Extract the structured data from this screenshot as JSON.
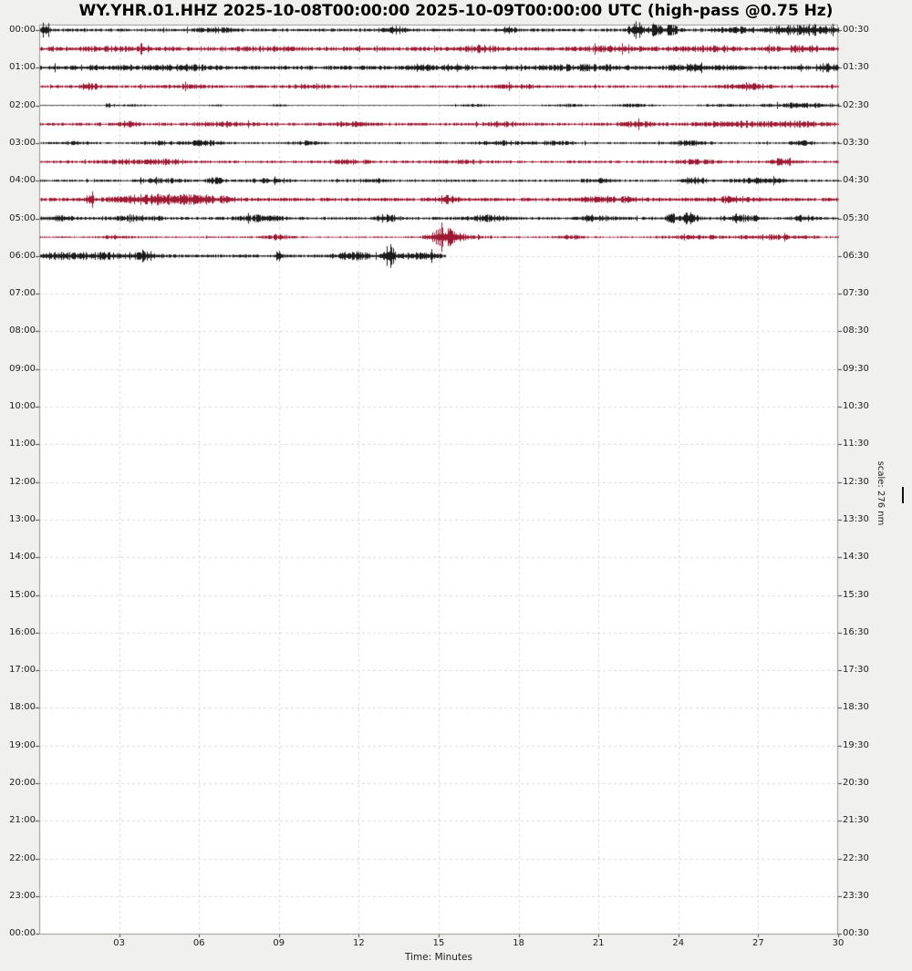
{
  "title": "WY.YHR.01.HHZ 2025-10-08T00:00:00 2025-10-09T00:00:00 UTC (high-pass @0.75 Hz)",
  "colors": {
    "background": "#f0f0ee",
    "plot_background": "#ffffff",
    "frame": "#979797",
    "grid": "#dcdcdc",
    "tick": "#444444",
    "text": "#1c1c1c",
    "trace_black": "#1a1a1a",
    "trace_red": "#9e1a34"
  },
  "x_axis": {
    "label": "Time: Minutes",
    "ticks": [
      "03",
      "06",
      "09",
      "12",
      "15",
      "18",
      "21",
      "24",
      "27",
      "30"
    ],
    "tick_minutes": [
      3,
      6,
      9,
      12,
      15,
      18,
      21,
      24,
      27,
      30
    ],
    "range": [
      0,
      30
    ],
    "grid_dashed": true
  },
  "y_axis_left": {
    "labels": [
      "00:00",
      "01:00",
      "02:00",
      "03:00",
      "04:00",
      "05:00",
      "06:00",
      "07:00",
      "08:00",
      "09:00",
      "10:00",
      "11:00",
      "12:00",
      "13:00",
      "14:00",
      "15:00",
      "16:00",
      "17:00",
      "18:00",
      "19:00",
      "20:00",
      "21:00",
      "22:00",
      "23:00",
      "00:00"
    ]
  },
  "y_axis_right": {
    "labels": [
      "00:30",
      "01:30",
      "02:30",
      "03:30",
      "04:30",
      "05:30",
      "06:30",
      "07:30",
      "08:30",
      "09:30",
      "10:30",
      "11:30",
      "12:30",
      "13:30",
      "14:30",
      "15:30",
      "16:30",
      "17:30",
      "18:30",
      "19:30",
      "20:30",
      "21:30",
      "22:30",
      "23:30",
      "00:30"
    ]
  },
  "scale": {
    "label": "scale: 276 nm"
  },
  "chart_data": {
    "type": "line",
    "subtype": "helicorder-dayplot",
    "title": "WY.YHR.01.HHZ 2025-10-08T00:00:00 2025-10-09T00:00:00 UTC (high-pass @0.75 Hz)",
    "xlabel": "Time: Minutes",
    "x_range_minutes": [
      0,
      30
    ],
    "minutes_per_line": 30,
    "hours_shown": 24,
    "data_ends_at": "06:15 UTC approx",
    "rows": [
      {
        "t": "00:00",
        "color": "black",
        "end": 30,
        "base": 1.6,
        "bursts": [
          [
            0.2,
            0.12,
            8
          ],
          [
            6.6,
            0.5,
            2
          ],
          [
            13.3,
            0.35,
            3.5
          ],
          [
            17.6,
            0.3,
            2.5
          ],
          [
            22.4,
            0.18,
            9
          ],
          [
            23.1,
            0.15,
            6
          ],
          [
            23.7,
            0.2,
            5
          ],
          [
            26.0,
            0.5,
            2.5
          ],
          [
            28.2,
            0.8,
            4
          ],
          [
            29.3,
            0.4,
            3
          ]
        ]
      },
      {
        "t": "00:30",
        "color": "red",
        "end": 30,
        "base": 2.1,
        "bursts": [
          [
            3.0,
            1.2,
            1.5
          ],
          [
            8.5,
            0.8,
            1.2
          ],
          [
            16.6,
            0.5,
            2.2
          ],
          [
            21.5,
            1.0,
            1.5
          ],
          [
            25.0,
            0.8,
            1.8
          ],
          [
            28.6,
            0.7,
            2.2
          ]
        ]
      },
      {
        "t": "01:00",
        "color": "black",
        "end": 30,
        "base": 2.2,
        "bursts": [
          [
            2.5,
            1.5,
            1.2
          ],
          [
            5.5,
            0.8,
            1.5
          ],
          [
            14.3,
            0.25,
            3.2
          ],
          [
            15.6,
            0.4,
            2.2
          ],
          [
            20.5,
            1.2,
            1.8
          ],
          [
            24.8,
            0.7,
            2.4
          ],
          [
            29.6,
            0.35,
            2.8
          ]
        ]
      },
      {
        "t": "01:30",
        "color": "red",
        "end": 30,
        "base": 1.5,
        "bursts": [
          [
            1.85,
            0.3,
            2.8
          ],
          [
            5.5,
            0.6,
            1.5
          ],
          [
            10.1,
            0.5,
            1.8
          ],
          [
            18.0,
            0.6,
            1.5
          ],
          [
            26.6,
            0.5,
            3.2
          ]
        ]
      },
      {
        "t": "02:00",
        "color": "black",
        "end": 30,
        "base": 0.45,
        "bursts": [
          [
            2.6,
            0.12,
            1.4
          ],
          [
            3.4,
            0.5,
            1.0
          ],
          [
            6.6,
            0.2,
            0.8
          ],
          [
            9.0,
            0.25,
            1.0
          ],
          [
            16.3,
            0.5,
            1.3
          ],
          [
            19.9,
            0.5,
            1.4
          ],
          [
            22.3,
            0.6,
            1.4
          ],
          [
            25.6,
            0.6,
            1.6
          ],
          [
            28.7,
            1.2,
            2.6
          ]
        ]
      },
      {
        "t": "02:30",
        "color": "red",
        "end": 30,
        "base": 1.6,
        "bursts": [
          [
            3.3,
            0.3,
            2.2
          ],
          [
            7.0,
            0.8,
            1.6
          ],
          [
            11.6,
            0.6,
            1.5
          ],
          [
            17.4,
            0.5,
            1.8
          ],
          [
            22.5,
            0.5,
            2.2
          ],
          [
            25.9,
            0.8,
            2.2
          ],
          [
            28.2,
            1.0,
            2.2
          ]
        ]
      },
      {
        "t": "03:00",
        "color": "black",
        "end": 30,
        "base": 1.0,
        "bursts": [
          [
            1.3,
            0.4,
            1.6
          ],
          [
            4.5,
            0.5,
            1.6
          ],
          [
            6.2,
            0.5,
            2.4
          ],
          [
            10.0,
            0.4,
            1.5
          ],
          [
            17.3,
            0.6,
            2.2
          ],
          [
            19.3,
            0.6,
            1.8
          ],
          [
            24.4,
            0.5,
            2.4
          ],
          [
            28.6,
            0.3,
            2.2
          ]
        ]
      },
      {
        "t": "03:30",
        "color": "red",
        "end": 30,
        "base": 1.4,
        "bursts": [
          [
            3.3,
            0.8,
            1.6
          ],
          [
            4.9,
            0.4,
            2.0
          ],
          [
            11.6,
            0.5,
            1.6
          ],
          [
            16.0,
            0.6,
            1.4
          ],
          [
            24.6,
            0.5,
            1.8
          ],
          [
            28.0,
            0.35,
            3.4
          ]
        ]
      },
      {
        "t": "04:00",
        "color": "black",
        "end": 30,
        "base": 1.2,
        "bursts": [
          [
            4.6,
            0.6,
            2.0
          ],
          [
            6.6,
            0.2,
            3.0
          ],
          [
            8.6,
            0.6,
            1.6
          ],
          [
            12.6,
            0.5,
            1.6
          ],
          [
            21.0,
            0.5,
            1.8
          ],
          [
            24.6,
            0.3,
            3.6
          ],
          [
            27.0,
            0.8,
            2.2
          ]
        ]
      },
      {
        "t": "04:30",
        "color": "red",
        "end": 30,
        "base": 1.8,
        "bursts": [
          [
            1.9,
            0.1,
            4.5
          ],
          [
            4.4,
            1.1,
            4.2
          ],
          [
            6.3,
            0.7,
            2.6
          ],
          [
            15.3,
            0.25,
            3.6
          ],
          [
            21.4,
            0.8,
            2.2
          ],
          [
            26.0,
            0.6,
            2.0
          ]
        ]
      },
      {
        "t": "05:00",
        "color": "black",
        "end": 30,
        "base": 1.5,
        "bursts": [
          [
            0.9,
            0.3,
            2.2
          ],
          [
            3.7,
            0.7,
            2.2
          ],
          [
            8.3,
            0.6,
            2.4
          ],
          [
            13.1,
            0.3,
            3.0
          ],
          [
            16.9,
            0.6,
            2.6
          ],
          [
            20.8,
            0.5,
            2.6
          ],
          [
            23.7,
            0.12,
            5.5
          ],
          [
            24.4,
            0.2,
            6.5
          ],
          [
            26.3,
            0.5,
            2.6
          ],
          [
            28.7,
            0.3,
            2.2
          ]
        ]
      },
      {
        "t": "05:30",
        "color": "red",
        "end": 30,
        "base": 0.9,
        "bursts": [
          [
            2.9,
            0.4,
            1.8
          ],
          [
            8.9,
            0.35,
            2.2
          ],
          [
            15.2,
            0.35,
            9.5
          ],
          [
            16.1,
            0.4,
            2.0
          ],
          [
            19.9,
            0.4,
            1.8
          ],
          [
            24.5,
            0.8,
            1.8
          ],
          [
            27.6,
            1.0,
            2.2
          ]
        ]
      },
      {
        "t": "06:00",
        "color": "black",
        "end": 15.25,
        "base": 1.7,
        "bursts": [
          [
            0.6,
            0.7,
            2.6
          ],
          [
            2.6,
            0.9,
            2.6
          ],
          [
            4.0,
            0.3,
            3.2
          ],
          [
            9.0,
            0.08,
            7.0
          ],
          [
            11.8,
            0.5,
            3.2
          ],
          [
            13.15,
            0.12,
            13
          ],
          [
            14.3,
            0.5,
            3.2
          ]
        ]
      }
    ]
  }
}
